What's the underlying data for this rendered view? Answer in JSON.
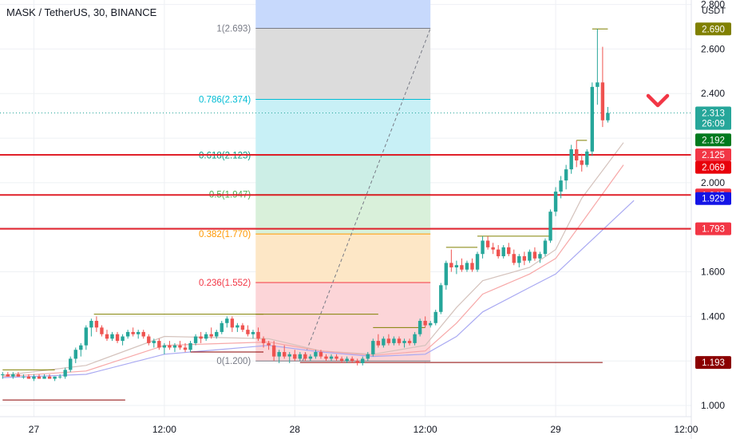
{
  "chart_data": {
    "type": "candlestick",
    "title": "MASK / TetherUS, 30, BINANCE",
    "price_unit": "USDT",
    "x_ticks": [
      "27",
      "12:00",
      "28",
      "12:00",
      "29",
      "12:00"
    ],
    "x_tick_days": [
      0.0,
      0.5,
      1.0,
      1.5,
      2.0,
      2.5
    ],
    "ylim": [
      0.95,
      2.82
    ],
    "xlim": [
      -0.13,
      2.52
    ],
    "y_ticks": [
      "1.000",
      "1.200",
      "1.400",
      "1.600",
      "1.800",
      "2.000",
      "2.200",
      "2.400",
      "2.600",
      "2.800"
    ],
    "y_tick_values": [
      1.0,
      1.2,
      1.4,
      1.6,
      1.8,
      2.0,
      2.2,
      2.4,
      2.6,
      2.8
    ],
    "grid": true,
    "candles": [
      [
        -0.12,
        1.14,
        1.15,
        1.12,
        1.14
      ],
      [
        -0.1,
        1.14,
        1.15,
        1.13,
        1.13
      ],
      [
        -0.08,
        1.13,
        1.15,
        1.12,
        1.14
      ],
      [
        -0.06,
        1.14,
        1.15,
        1.13,
        1.13
      ],
      [
        -0.04,
        1.13,
        1.14,
        1.12,
        1.13
      ],
      [
        -0.02,
        1.13,
        1.14,
        1.12,
        1.12
      ],
      [
        0.0,
        1.12,
        1.14,
        1.11,
        1.13
      ],
      [
        0.02,
        1.13,
        1.14,
        1.12,
        1.12
      ],
      [
        0.04,
        1.12,
        1.14,
        1.12,
        1.13
      ],
      [
        0.06,
        1.13,
        1.14,
        1.12,
        1.12
      ],
      [
        0.08,
        1.12,
        1.13,
        1.11,
        1.13
      ],
      [
        0.1,
        1.13,
        1.14,
        1.12,
        1.13
      ],
      [
        0.12,
        1.13,
        1.17,
        1.12,
        1.16
      ],
      [
        0.14,
        1.16,
        1.22,
        1.15,
        1.21
      ],
      [
        0.16,
        1.21,
        1.26,
        1.19,
        1.25
      ],
      [
        0.18,
        1.25,
        1.28,
        1.22,
        1.27
      ],
      [
        0.2,
        1.27,
        1.36,
        1.25,
        1.35
      ],
      [
        0.22,
        1.35,
        1.39,
        1.31,
        1.38
      ],
      [
        0.24,
        1.38,
        1.4,
        1.33,
        1.35
      ],
      [
        0.26,
        1.35,
        1.36,
        1.31,
        1.32
      ],
      [
        0.28,
        1.32,
        1.34,
        1.29,
        1.3
      ],
      [
        0.3,
        1.3,
        1.33,
        1.29,
        1.32
      ],
      [
        0.32,
        1.32,
        1.33,
        1.28,
        1.29
      ],
      [
        0.34,
        1.29,
        1.32,
        1.27,
        1.31
      ],
      [
        0.36,
        1.31,
        1.34,
        1.3,
        1.33
      ],
      [
        0.38,
        1.33,
        1.35,
        1.31,
        1.32
      ],
      [
        0.4,
        1.32,
        1.34,
        1.3,
        1.33
      ],
      [
        0.42,
        1.33,
        1.34,
        1.3,
        1.31
      ],
      [
        0.44,
        1.31,
        1.32,
        1.27,
        1.28
      ],
      [
        0.46,
        1.28,
        1.3,
        1.26,
        1.29
      ],
      [
        0.48,
        1.29,
        1.3,
        1.25,
        1.26
      ],
      [
        0.5,
        1.26,
        1.28,
        1.23,
        1.27
      ],
      [
        0.52,
        1.27,
        1.29,
        1.25,
        1.26
      ],
      [
        0.54,
        1.26,
        1.28,
        1.24,
        1.27
      ],
      [
        0.56,
        1.27,
        1.29,
        1.25,
        1.26
      ],
      [
        0.58,
        1.26,
        1.28,
        1.24,
        1.25
      ],
      [
        0.6,
        1.25,
        1.29,
        1.24,
        1.28
      ],
      [
        0.62,
        1.28,
        1.32,
        1.27,
        1.31
      ],
      [
        0.64,
        1.31,
        1.33,
        1.28,
        1.3
      ],
      [
        0.66,
        1.3,
        1.33,
        1.29,
        1.32
      ],
      [
        0.68,
        1.32,
        1.35,
        1.3,
        1.31
      ],
      [
        0.7,
        1.31,
        1.34,
        1.3,
        1.33
      ],
      [
        0.72,
        1.33,
        1.38,
        1.32,
        1.37
      ],
      [
        0.74,
        1.37,
        1.4,
        1.35,
        1.39
      ],
      [
        0.76,
        1.39,
        1.4,
        1.33,
        1.35
      ],
      [
        0.78,
        1.35,
        1.37,
        1.33,
        1.36
      ],
      [
        0.8,
        1.36,
        1.37,
        1.33,
        1.34
      ],
      [
        0.82,
        1.34,
        1.36,
        1.31,
        1.32
      ],
      [
        0.84,
        1.32,
        1.34,
        1.3,
        1.33
      ],
      [
        0.86,
        1.33,
        1.35,
        1.29,
        1.3
      ],
      [
        0.88,
        1.3,
        1.31,
        1.26,
        1.28
      ],
      [
        0.9,
        1.28,
        1.29,
        1.25,
        1.27
      ],
      [
        0.92,
        1.27,
        1.29,
        1.2,
        1.22
      ],
      [
        0.94,
        1.22,
        1.25,
        1.19,
        1.24
      ],
      [
        0.96,
        1.24,
        1.27,
        1.21,
        1.22
      ],
      [
        0.98,
        1.22,
        1.24,
        1.19,
        1.23
      ],
      [
        1.0,
        1.23,
        1.25,
        1.2,
        1.21
      ],
      [
        1.02,
        1.21,
        1.24,
        1.2,
        1.23
      ],
      [
        1.04,
        1.23,
        1.24,
        1.2,
        1.21
      ],
      [
        1.06,
        1.21,
        1.23,
        1.2,
        1.22
      ],
      [
        1.08,
        1.22,
        1.25,
        1.21,
        1.24
      ],
      [
        1.1,
        1.24,
        1.25,
        1.21,
        1.22
      ],
      [
        1.12,
        1.22,
        1.23,
        1.2,
        1.21
      ],
      [
        1.14,
        1.21,
        1.23,
        1.2,
        1.22
      ],
      [
        1.16,
        1.22,
        1.23,
        1.2,
        1.21
      ],
      [
        1.18,
        1.21,
        1.22,
        1.19,
        1.2
      ],
      [
        1.2,
        1.2,
        1.22,
        1.19,
        1.21
      ],
      [
        1.22,
        1.21,
        1.22,
        1.19,
        1.2
      ],
      [
        1.24,
        1.2,
        1.21,
        1.18,
        1.19
      ],
      [
        1.26,
        1.19,
        1.22,
        1.18,
        1.21
      ],
      [
        1.28,
        1.21,
        1.24,
        1.2,
        1.23
      ],
      [
        1.3,
        1.23,
        1.3,
        1.22,
        1.29
      ],
      [
        1.32,
        1.29,
        1.32,
        1.26,
        1.27
      ],
      [
        1.34,
        1.27,
        1.31,
        1.26,
        1.3
      ],
      [
        1.36,
        1.3,
        1.32,
        1.27,
        1.28
      ],
      [
        1.38,
        1.28,
        1.31,
        1.27,
        1.3
      ],
      [
        1.4,
        1.3,
        1.31,
        1.27,
        1.28
      ],
      [
        1.42,
        1.28,
        1.3,
        1.26,
        1.29
      ],
      [
        1.44,
        1.29,
        1.3,
        1.27,
        1.28
      ],
      [
        1.46,
        1.28,
        1.33,
        1.27,
        1.32
      ],
      [
        1.48,
        1.32,
        1.39,
        1.31,
        1.38
      ],
      [
        1.5,
        1.38,
        1.4,
        1.35,
        1.36
      ],
      [
        1.52,
        1.36,
        1.38,
        1.35,
        1.37
      ],
      [
        1.54,
        1.37,
        1.43,
        1.36,
        1.42
      ],
      [
        1.56,
        1.42,
        1.55,
        1.41,
        1.54
      ],
      [
        1.58,
        1.54,
        1.65,
        1.52,
        1.64
      ],
      [
        1.6,
        1.64,
        1.7,
        1.6,
        1.62
      ],
      [
        1.62,
        1.62,
        1.65,
        1.59,
        1.63
      ],
      [
        1.64,
        1.63,
        1.66,
        1.6,
        1.61
      ],
      [
        1.66,
        1.61,
        1.65,
        1.6,
        1.64
      ],
      [
        1.68,
        1.64,
        1.66,
        1.6,
        1.61
      ],
      [
        1.7,
        1.61,
        1.69,
        1.6,
        1.68
      ],
      [
        1.72,
        1.68,
        1.76,
        1.66,
        1.74
      ],
      [
        1.74,
        1.74,
        1.76,
        1.7,
        1.71
      ],
      [
        1.76,
        1.71,
        1.73,
        1.68,
        1.7
      ],
      [
        1.78,
        1.7,
        1.72,
        1.66,
        1.67
      ],
      [
        1.8,
        1.67,
        1.72,
        1.66,
        1.71
      ],
      [
        1.82,
        1.71,
        1.73,
        1.67,
        1.68
      ],
      [
        1.84,
        1.68,
        1.7,
        1.63,
        1.64
      ],
      [
        1.86,
        1.64,
        1.68,
        1.62,
        1.67
      ],
      [
        1.88,
        1.67,
        1.69,
        1.63,
        1.65
      ],
      [
        1.9,
        1.65,
        1.7,
        1.64,
        1.69
      ],
      [
        1.92,
        1.69,
        1.71,
        1.65,
        1.66
      ],
      [
        1.94,
        1.66,
        1.69,
        1.64,
        1.68
      ],
      [
        1.96,
        1.68,
        1.75,
        1.67,
        1.74
      ],
      [
        1.98,
        1.74,
        1.88,
        1.73,
        1.87
      ],
      [
        2.0,
        1.87,
        1.98,
        1.85,
        1.96
      ],
      [
        2.02,
        1.96,
        2.03,
        1.93,
        2.01
      ],
      [
        2.04,
        2.01,
        2.08,
        1.97,
        2.06
      ],
      [
        2.06,
        2.06,
        2.17,
        2.04,
        2.15
      ],
      [
        2.08,
        2.15,
        2.19,
        2.07,
        2.1
      ],
      [
        2.1,
        2.1,
        2.13,
        2.05,
        2.08
      ],
      [
        2.12,
        2.08,
        2.15,
        2.07,
        2.14
      ],
      [
        2.14,
        2.14,
        2.45,
        2.12,
        2.43
      ],
      [
        2.16,
        2.43,
        2.69,
        2.35,
        2.45
      ],
      [
        2.18,
        2.45,
        2.61,
        2.25,
        2.28
      ],
      [
        2.2,
        2.28,
        2.34,
        2.27,
        2.313
      ]
    ],
    "series": [
      {
        "name": "",
        "color": "#d4c2bc",
        "values": [
          [
            -0.12,
            1.135
          ],
          [
            0.2,
            1.18
          ],
          [
            0.5,
            1.31
          ],
          [
            0.9,
            1.3
          ],
          [
            1.1,
            1.245
          ],
          [
            1.3,
            1.23
          ],
          [
            1.5,
            1.27
          ],
          [
            1.62,
            1.44
          ],
          [
            1.72,
            1.56
          ],
          [
            1.9,
            1.62
          ],
          [
            2.0,
            1.7
          ],
          [
            2.1,
            1.93
          ],
          [
            2.26,
            2.18
          ]
        ]
      },
      {
        "name": "",
        "color": "#f7a8a8",
        "values": [
          [
            -0.12,
            1.13
          ],
          [
            0.2,
            1.155
          ],
          [
            0.5,
            1.27
          ],
          [
            0.9,
            1.285
          ],
          [
            1.1,
            1.245
          ],
          [
            1.3,
            1.225
          ],
          [
            1.5,
            1.245
          ],
          [
            1.62,
            1.37
          ],
          [
            1.72,
            1.5
          ],
          [
            1.9,
            1.59
          ],
          [
            2.0,
            1.66
          ],
          [
            2.1,
            1.82
          ],
          [
            2.26,
            2.08
          ]
        ]
      },
      {
        "name": "",
        "color": "#a9a9f2",
        "values": [
          [
            -0.12,
            1.125
          ],
          [
            0.2,
            1.14
          ],
          [
            0.5,
            1.23
          ],
          [
            0.9,
            1.27
          ],
          [
            1.1,
            1.24
          ],
          [
            1.3,
            1.22
          ],
          [
            1.5,
            1.23
          ],
          [
            1.62,
            1.31
          ],
          [
            1.72,
            1.42
          ],
          [
            1.9,
            1.53
          ],
          [
            2.0,
            1.59
          ],
          [
            2.1,
            1.7
          ],
          [
            2.3,
            1.92
          ]
        ]
      }
    ],
    "fibonacci": {
      "x_start": 0.85,
      "x_end": 1.52,
      "levels": [
        {
          "label": "1(2.693)",
          "value": 2.693,
          "color": "#787b86",
          "fill": "#dcdcdc"
        },
        {
          "label": "0.786(2.374)",
          "value": 2.374,
          "color": "#00bcd4",
          "fill": "#c8f0f6"
        },
        {
          "label": "0.618(2.123)",
          "value": 2.123,
          "color": "#089981",
          "fill": "#cceee6"
        },
        {
          "label": "0.5(1.947)",
          "value": 1.947,
          "color": "#4caf50",
          "fill": "#d9f0da"
        },
        {
          "label": "0.382(1.770)",
          "value": 1.77,
          "color": "#ff9800",
          "fill": "#fde7c6"
        },
        {
          "label": "0.236(1.552)",
          "value": 1.552,
          "color": "#f23645",
          "fill": "#fcd5d8"
        },
        {
          "label": "0(1.200)",
          "value": 1.2,
          "color": "#787b86",
          "fill": ""
        }
      ],
      "top_fill": "#c7d9fc"
    },
    "horizontal_lines": [
      {
        "value": 2.125,
        "color": "#e0202a"
      },
      {
        "value": 1.945,
        "color": "#e0202a"
      },
      {
        "value": 1.793,
        "color": "#e0202a"
      }
    ],
    "price_tags": [
      {
        "label": "2.690",
        "value": 2.69,
        "color": "#808000"
      },
      {
        "label": "2.313",
        "value": 2.313,
        "color": "#26a69a"
      },
      {
        "label": "26:09",
        "value": 2.266,
        "color": "#26a69a"
      },
      {
        "label": "2.192",
        "value": 2.192,
        "color": "#007a1e"
      },
      {
        "label": "2.125",
        "value": 2.125,
        "color": "#f23645"
      },
      {
        "label": "2.069",
        "value": 2.069,
        "color": "#e8000b"
      },
      {
        "label": "1.945",
        "value": 1.945,
        "color": "#f23645"
      },
      {
        "label": "1.929",
        "value": 1.929,
        "color": "#1414e6"
      },
      {
        "label": "1.793",
        "value": 1.793,
        "color": "#f23645"
      },
      {
        "label": "1.193",
        "value": 1.193,
        "color": "#8b0000"
      }
    ],
    "colors": {
      "up": "#26a69a",
      "down": "#ef5350",
      "grid": "#eef0f4",
      "axis_text": "#131722",
      "arrow": "#f23645"
    }
  }
}
